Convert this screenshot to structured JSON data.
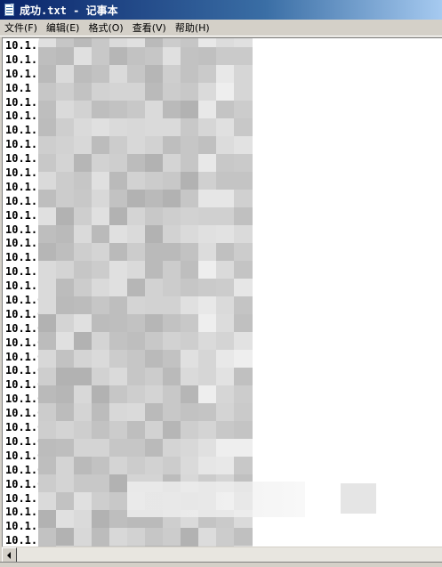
{
  "window": {
    "title": "成功.txt - 记事本"
  },
  "menubar": {
    "items": [
      "文件(F)",
      "编辑(E)",
      "格式(O)",
      "查看(V)",
      "帮助(H)"
    ]
  },
  "editor": {
    "lines": [
      "10.1.",
      "10.1.",
      "10.1.",
      "10.1",
      "10.1.",
      "10.1.",
      "10.1.",
      "10.1.",
      "10.1.",
      "10.1.",
      "10.1.",
      "10.1.",
      "10.1.",
      "10.1.",
      "10.1.",
      "10.1.",
      "10.1.",
      "10.1.",
      "10.1.0",
      "10.1.0",
      "10.1.0",
      "10.1.0",
      "10.1.0",
      "10.1.0",
      "10.1.0",
      "10.1.0",
      "10.1.0",
      "10.1.0",
      "10.1.0",
      "10.1.0",
      "10.1.0",
      "10.1.0",
      "10.1.",
      "10.1.",
      "10.1.",
      "10.1.",
      "10.1."
    ]
  },
  "colors": {
    "title_start": "#0a246a",
    "title_end": "#a6caf0",
    "chrome": "#d4d0c8",
    "editor_bg": "#ffffff"
  },
  "icons": {
    "title": "notepad-icon",
    "scroll_left": "arrow-left-icon"
  }
}
